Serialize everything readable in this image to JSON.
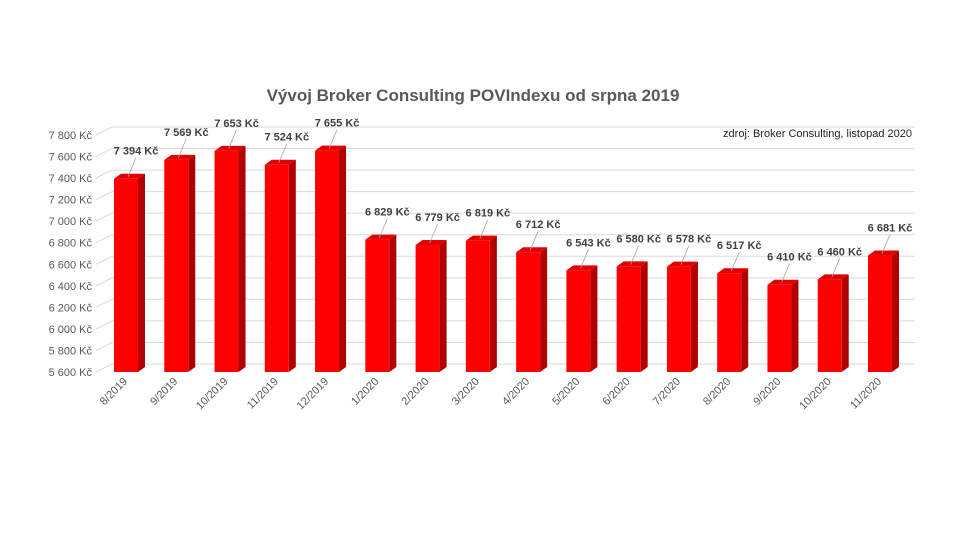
{
  "chart_data": {
    "type": "bar",
    "title": "Vývoj Broker Consulting POVIndexu od srpna 2019",
    "annotation": "zdroj: Broker Consulting, listopad 2020",
    "categories": [
      "8/2019",
      "9/2019",
      "10/2019",
      "11/2019",
      "12/2019",
      "1/2020",
      "2/2020",
      "3/2020",
      "4/2020",
      "5/2020",
      "6/2020",
      "7/2020",
      "8/2020",
      "9/2020",
      "10/2020",
      "11/2020"
    ],
    "values": [
      7394,
      7569,
      7653,
      7524,
      7655,
      6829,
      6779,
      6819,
      6712,
      6543,
      6580,
      6578,
      6517,
      6410,
      6460,
      6681
    ],
    "data_labels": [
      "7 394 Kč",
      "7 569 Kč",
      "7 653 Kč",
      "7 524 Kč",
      "7 655 Kč",
      "6 829 Kč",
      "6 779 Kč",
      "6 819 Kč",
      "6 712 Kč",
      "6 543 Kč",
      "6 580 Kč",
      "6 578 Kč",
      "6 517 Kč",
      "6 410 Kč",
      "6 460 Kč",
      "6 681 Kč"
    ],
    "yticks": [
      "5 600 Kč",
      "5 800 Kč",
      "6 000 Kč",
      "6 200 Kč",
      "6 400 Kč",
      "6 600 Kč",
      "6 800 Kč",
      "7 000 Kč",
      "7 200 Kč",
      "7 400 Kč",
      "7 600 Kč",
      "7 800 Kč"
    ],
    "ylim": [
      5600,
      7800
    ],
    "grid": true,
    "style": "3d-column",
    "bar_color": "#ff0000",
    "bar_side_color": "#b00000",
    "bar_top_color": "#e00000"
  }
}
